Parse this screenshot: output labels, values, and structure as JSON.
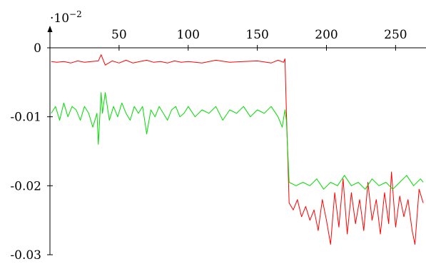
{
  "chart_data": {
    "type": "line",
    "title": "",
    "xlabel": "",
    "ylabel": "",
    "y_scale_label": "·10",
    "y_scale_exponent": "−2",
    "xlim": [
      0,
      272
    ],
    "ylim": [
      -0.03,
      0
    ],
    "x_ticks": [
      50,
      100,
      150,
      200,
      250
    ],
    "x_tick_labels": [
      "50",
      "100",
      "150",
      "200",
      "250"
    ],
    "y_ticks": [
      0,
      -0.01,
      -0.02,
      -0.03
    ],
    "y_tick_labels": [
      "0",
      "-0.01",
      "-0.02",
      "-0.03"
    ],
    "x_axis_position": "top",
    "grid": false,
    "legend": "none",
    "series": [
      {
        "color": "#ff0000",
        "x": [
          1,
          5,
          10,
          15,
          20,
          25,
          30,
          35,
          37,
          40,
          45,
          50,
          55,
          60,
          65,
          70,
          75,
          80,
          85,
          90,
          95,
          100,
          110,
          120,
          130,
          140,
          150,
          160,
          165,
          169,
          170,
          171,
          173,
          176,
          179,
          182,
          185,
          188,
          191,
          194,
          197,
          200,
          203,
          206,
          209,
          212,
          215,
          218,
          221,
          224,
          227,
          230,
          233,
          236,
          239,
          242,
          245,
          247,
          250,
          253,
          256,
          259,
          262,
          264,
          267,
          270
        ],
        "y": [
          -0.002,
          -0.0021,
          -0.002,
          -0.0022,
          -0.0019,
          -0.0021,
          -0.002,
          -0.0019,
          -0.001,
          -0.0025,
          -0.0019,
          -0.0022,
          -0.0018,
          -0.0022,
          -0.002,
          -0.0018,
          -0.0021,
          -0.002,
          -0.0022,
          -0.0019,
          -0.0021,
          -0.002,
          -0.0022,
          -0.0018,
          -0.0021,
          -0.002,
          -0.0019,
          -0.0022,
          -0.0018,
          -0.0021,
          -0.0016,
          -0.009,
          -0.0225,
          -0.0235,
          -0.022,
          -0.0245,
          -0.023,
          -0.025,
          -0.0235,
          -0.0265,
          -0.022,
          -0.025,
          -0.0285,
          -0.021,
          -0.026,
          -0.019,
          -0.027,
          -0.021,
          -0.0255,
          -0.022,
          -0.0265,
          -0.0195,
          -0.025,
          -0.022,
          -0.027,
          -0.021,
          -0.0255,
          -0.018,
          -0.026,
          -0.0215,
          -0.0245,
          -0.022,
          -0.0265,
          -0.0285,
          -0.0205,
          -0.0225
        ]
      },
      {
        "color": "#00dd00",
        "x": [
          1,
          4,
          7,
          10,
          13,
          16,
          19,
          22,
          25,
          28,
          31,
          34,
          35,
          37,
          38,
          40,
          43,
          46,
          49,
          52,
          55,
          58,
          61,
          64,
          67,
          70,
          73,
          76,
          79,
          82,
          85,
          88,
          91,
          94,
          97,
          100,
          105,
          110,
          115,
          120,
          125,
          130,
          135,
          140,
          145,
          150,
          155,
          160,
          165,
          168,
          170,
          171,
          173,
          178,
          183,
          188,
          193,
          198,
          203,
          208,
          213,
          218,
          223,
          228,
          233,
          238,
          243,
          248,
          253,
          258,
          263,
          268,
          270
        ],
        "y": [
          -0.0095,
          -0.0085,
          -0.0105,
          -0.008,
          -0.01,
          -0.0085,
          -0.009,
          -0.0105,
          -0.0085,
          -0.0095,
          -0.0115,
          -0.0095,
          -0.014,
          -0.0065,
          -0.0095,
          -0.0065,
          -0.0105,
          -0.0085,
          -0.01,
          -0.008,
          -0.0095,
          -0.0105,
          -0.0085,
          -0.0095,
          -0.0085,
          -0.0125,
          -0.009,
          -0.01,
          -0.0085,
          -0.0095,
          -0.0105,
          -0.009,
          -0.0085,
          -0.01,
          -0.0095,
          -0.0085,
          -0.01,
          -0.009,
          -0.0095,
          -0.0085,
          -0.0105,
          -0.009,
          -0.0095,
          -0.0085,
          -0.01,
          -0.009,
          -0.0095,
          -0.0085,
          -0.01,
          -0.0115,
          -0.009,
          -0.0105,
          -0.0195,
          -0.02,
          -0.0195,
          -0.02,
          -0.019,
          -0.0205,
          -0.0195,
          -0.02,
          -0.0185,
          -0.02,
          -0.0195,
          -0.0205,
          -0.019,
          -0.02,
          -0.0195,
          -0.0205,
          -0.0195,
          -0.0185,
          -0.02,
          -0.019,
          -0.0195
        ]
      }
    ]
  }
}
